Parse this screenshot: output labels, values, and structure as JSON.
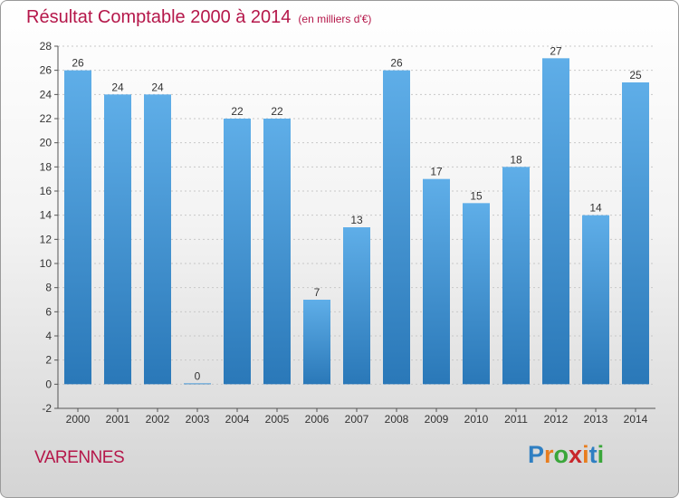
{
  "header": {
    "title": "Résultat Comptable 2000 à 2014",
    "subtitle": "(en milliers d'€)"
  },
  "footer": {
    "commune": "VARENNES",
    "logo": "Proxiti"
  },
  "colors": {
    "title": "#b5174a",
    "bar_top": "#5faee8",
    "bar_bottom": "#2a78b8"
  },
  "chart_data": {
    "type": "bar",
    "categories": [
      "2000",
      "2001",
      "2002",
      "2003",
      "2004",
      "2005",
      "2006",
      "2007",
      "2008",
      "2009",
      "2010",
      "2011",
      "2012",
      "2013",
      "2014"
    ],
    "values": [
      26,
      24,
      24,
      0,
      22,
      22,
      7,
      13,
      26,
      17,
      15,
      18,
      27,
      14,
      25
    ],
    "ylim": [
      -2,
      28
    ],
    "yticks": [
      -2,
      0,
      2,
      4,
      6,
      8,
      10,
      12,
      14,
      16,
      18,
      20,
      22,
      24,
      26,
      28
    ],
    "grid": true
  }
}
